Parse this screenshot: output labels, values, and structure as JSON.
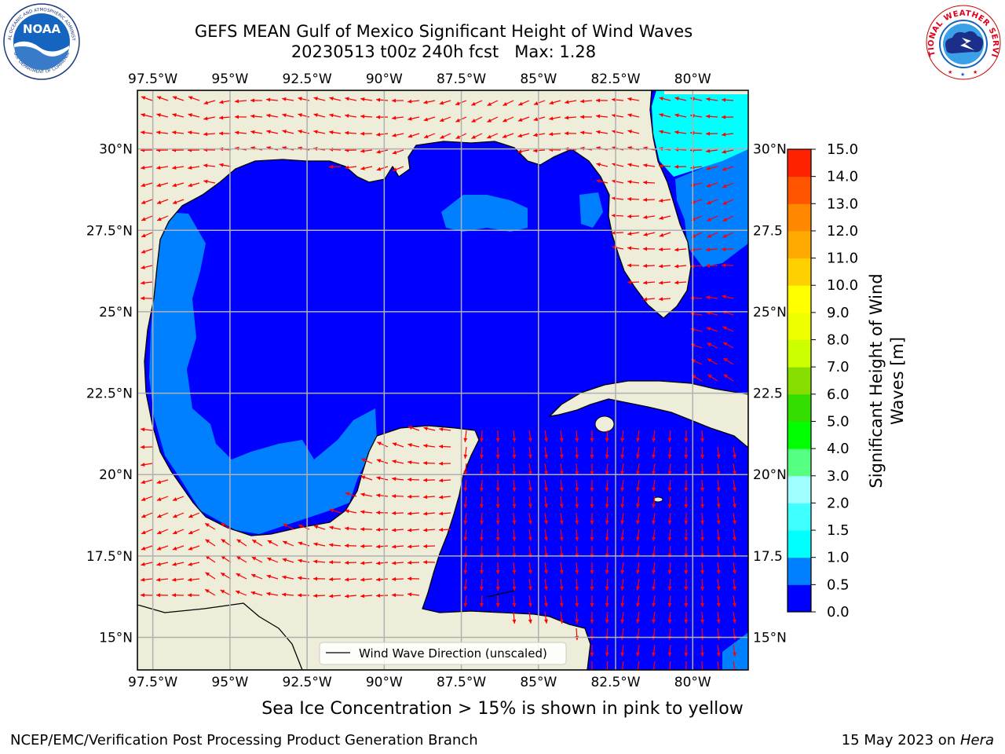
{
  "title": {
    "line1": "GEFS MEAN Gulf of Mexico Significant Height of Wind Waves",
    "line2": "20230513 t00z 240h fcst   Max: 1.28"
  },
  "logos": {
    "noaa_text": "NOAA",
    "noaa_ring_top": "NATIONAL OCEANIC AND ATMOSPHERIC ADMINISTRATION",
    "noaa_ring_bottom": "U.S. DEPARTMENT OF COMMERCE",
    "nws_ring": "NATIONAL WEATHER SERVICE"
  },
  "map": {
    "lon_range": [
      -98.0,
      -78.2
    ],
    "lat_range": [
      14.0,
      31.8
    ],
    "lon_ticks": [
      "97.5°W",
      "95°W",
      "92.5°W",
      "90°W",
      "87.5°W",
      "85°W",
      "82.5°W",
      "80°W"
    ],
    "lon_tick_values": [
      -97.5,
      -95,
      -92.5,
      -90,
      -87.5,
      -85,
      -82.5,
      -80
    ],
    "lat_ticks": [
      "30°N",
      "27.5°N",
      "25°N",
      "22.5°N",
      "20°N",
      "17.5°N",
      "15°N"
    ],
    "lat_tick_values": [
      30,
      27.5,
      25,
      22.5,
      20,
      17.5,
      15
    ],
    "right_lat_ticks": [
      "30°N",
      "27.5",
      "25°N",
      "22.5",
      "20°N",
      "17.5",
      "15°N"
    ],
    "grid": true,
    "legend_label": "Wind Wave Direction (unscaled)",
    "legend_placement": "bottom-center",
    "colors": {
      "land": "#eeedd9",
      "coast": "#000000",
      "arrow": "#ff0000",
      "grid": "#b0b0b0"
    }
  },
  "colorbar": {
    "label_line1": "Significant Height of Wind",
    "label_line2": "Waves [m]",
    "ticks": [
      "0.0",
      "0.5",
      "1.0",
      "1.5",
      "2.0",
      "3.0",
      "4.0",
      "5.0",
      "6.0",
      "7.0",
      "8.0",
      "9.0",
      "10.0",
      "11.0",
      "12.0",
      "13.0",
      "14.0",
      "15.0"
    ],
    "colors": [
      "#0000ff",
      "#0080ff",
      "#00ffff",
      "#40ffff",
      "#a0ffff",
      "#55ff7f",
      "#00ff00",
      "#33dd00",
      "#88dd00",
      "#ccff00",
      "#eeff00",
      "#ffff00",
      "#ffd000",
      "#ffaa00",
      "#ff8800",
      "#ff5500",
      "#ff2200",
      "#ff0000"
    ]
  },
  "notes": {
    "sea_ice": "Sea Ice Concentration > 15% is shown in pink to yellow",
    "footer_left": "NCEP/EMC/Verification Post Processing Product Generation Branch",
    "footer_date": "15 May 2023 on ",
    "footer_host": "Hera"
  }
}
